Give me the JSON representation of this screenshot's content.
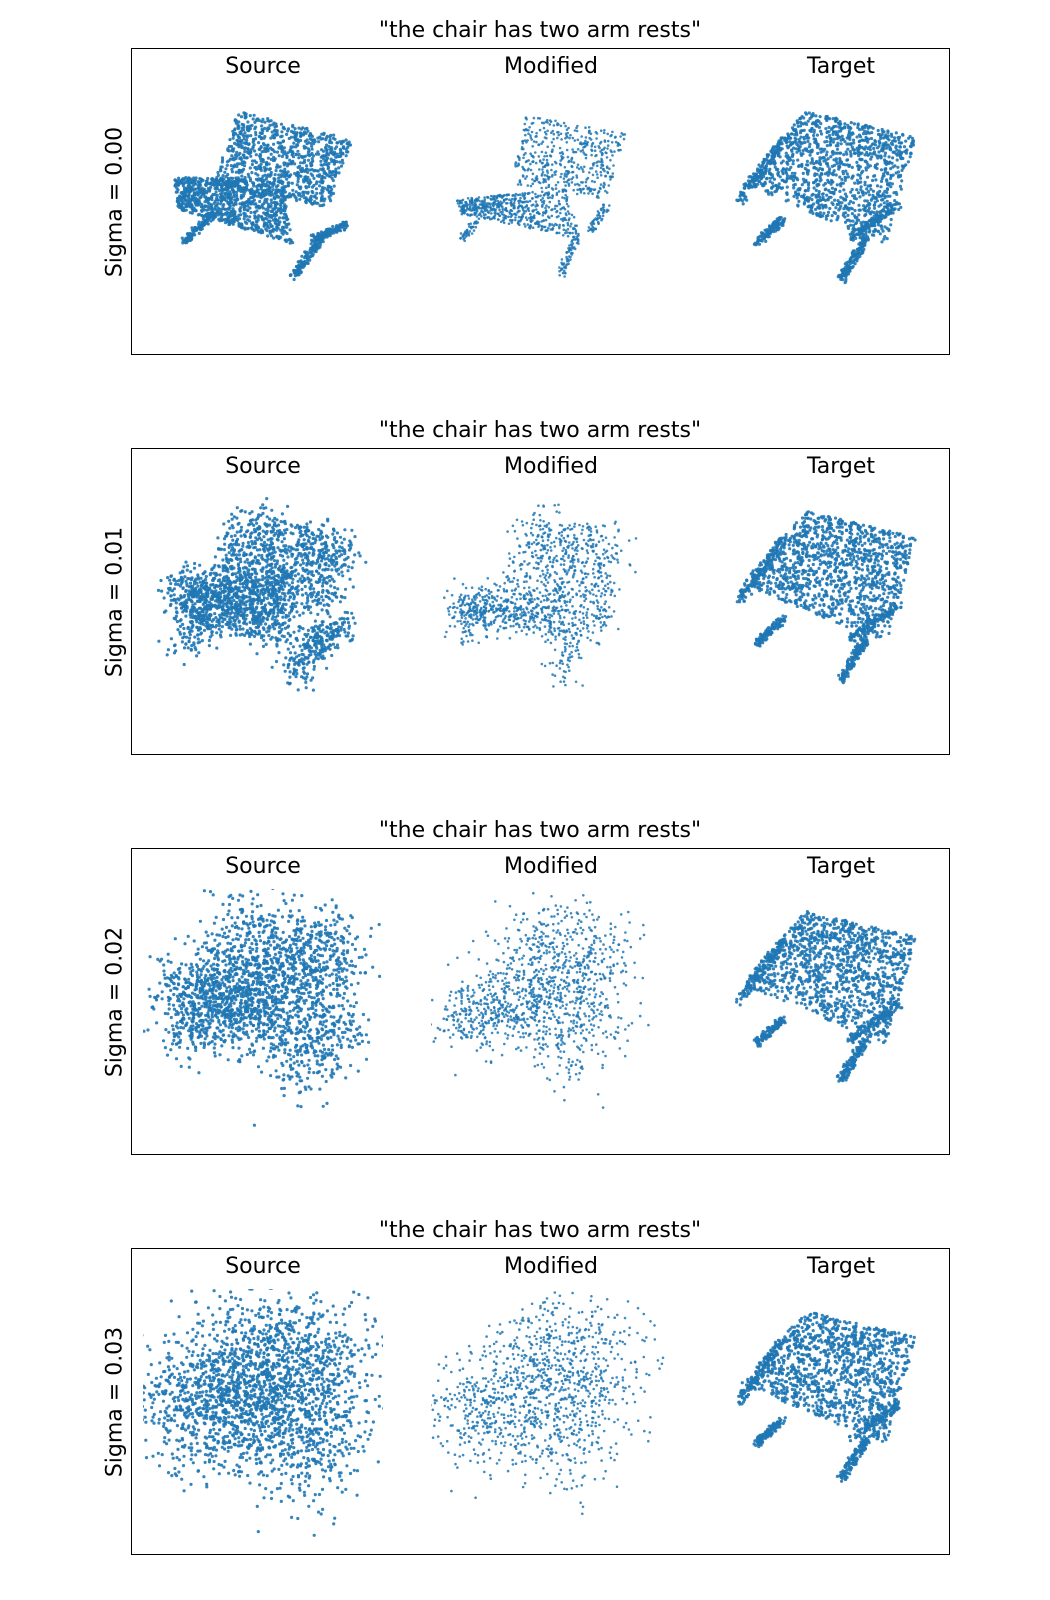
{
  "figure": {
    "panels": [
      {
        "title": "\"the chair has two arm rests\"",
        "row_label": "Sigma = 0.00",
        "columns": [
          "Source",
          "Modified",
          "Target"
        ],
        "noise": [
          0.0,
          0.0,
          0.0
        ]
      },
      {
        "title": "\"the chair has two arm rests\"",
        "row_label": "Sigma = 0.01",
        "columns": [
          "Source",
          "Modified",
          "Target"
        ],
        "noise": [
          0.01,
          0.01,
          0.0
        ]
      },
      {
        "title": "\"the chair has two arm rests\"",
        "row_label": "Sigma = 0.02",
        "columns": [
          "Source",
          "Modified",
          "Target"
        ],
        "noise": [
          0.02,
          0.02,
          0.0
        ]
      },
      {
        "title": "\"the chair has two arm rests\"",
        "row_label": "Sigma = 0.03",
        "columns": [
          "Source",
          "Modified",
          "Target"
        ],
        "noise": [
          0.03,
          0.03,
          0.0
        ]
      }
    ],
    "point_color": "#1f77b4"
  }
}
